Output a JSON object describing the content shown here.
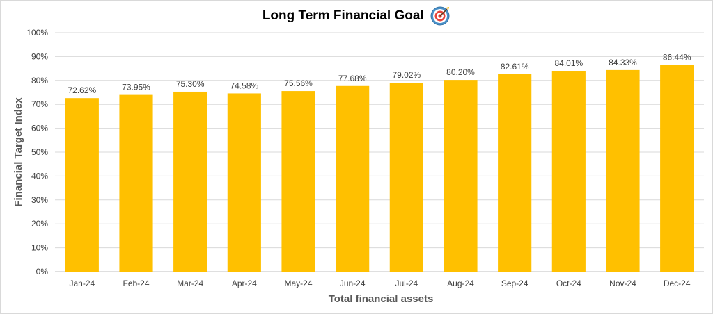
{
  "chart_data": {
    "type": "bar",
    "title": "Long Term Financial Goal",
    "title_icon": "target-dart-icon",
    "xlabel": "Total financial assets",
    "ylabel": "Financial Target Index",
    "categories": [
      "Jan-24",
      "Feb-24",
      "Mar-24",
      "Apr-24",
      "May-24",
      "Jun-24",
      "Jul-24",
      "Aug-24",
      "Sep-24",
      "Oct-24",
      "Nov-24",
      "Dec-24"
    ],
    "values": [
      72.62,
      73.95,
      75.3,
      74.58,
      75.56,
      77.68,
      79.02,
      80.2,
      82.61,
      84.01,
      84.33,
      86.44
    ],
    "data_labels": [
      "72.62%",
      "73.95%",
      "75.30%",
      "74.58%",
      "75.56%",
      "77.68%",
      "79.02%",
      "80.20%",
      "82.61%",
      "84.01%",
      "84.33%",
      "86.44%"
    ],
    "y_ticks": [
      "0%",
      "10%",
      "20%",
      "30%",
      "40%",
      "50%",
      "60%",
      "70%",
      "80%",
      "90%",
      "100%"
    ],
    "ylim": [
      0,
      100
    ],
    "grid": true,
    "legend": "none",
    "colors": {
      "bar": "#FFC000",
      "grid": "#d9d9d9",
      "axis": "#bfbfbf"
    }
  }
}
